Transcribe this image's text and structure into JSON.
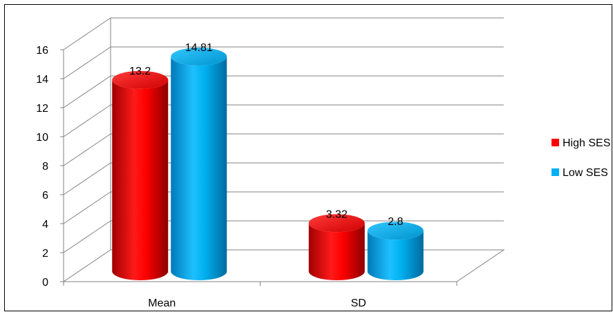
{
  "chart_data": {
    "type": "bar",
    "style": "3d-cylinder",
    "categories": [
      "Mean",
      "SD"
    ],
    "series": [
      {
        "name": "High SES",
        "values": [
          13.2,
          3.32
        ],
        "labels": [
          "13.2",
          "3.32"
        ],
        "color": "#ff0000"
      },
      {
        "name": "Low SES",
        "values": [
          14.81,
          2.8
        ],
        "labels": [
          "14.81",
          "2.8"
        ],
        "color": "#00b0f0"
      }
    ],
    "ylim": [
      0,
      16
    ],
    "yticks": [
      "0",
      "2",
      "4",
      "6",
      "8",
      "10",
      "12",
      "14",
      "16"
    ],
    "grid": true,
    "legend_position": "right"
  }
}
